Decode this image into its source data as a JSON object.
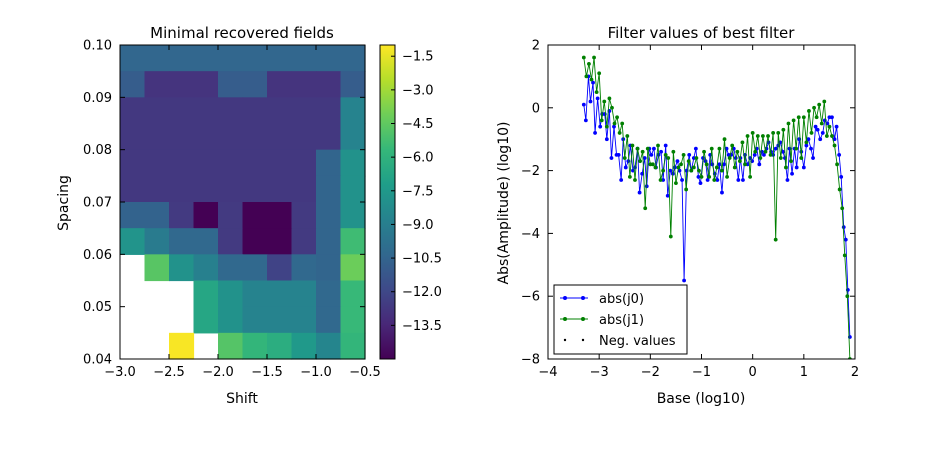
{
  "chart_data": [
    {
      "type": "heatmap",
      "title": "Minimal recovered fields",
      "xlabel": "Shift",
      "ylabel": "Spacing",
      "xlim": [
        -3.0,
        -0.5
      ],
      "ylim": [
        0.04,
        0.1
      ],
      "x_tick_labels": [
        "−3.0",
        "−2.5",
        "−2.0",
        "−1.5",
        "−1.0",
        "−0.5"
      ],
      "y_tick_labels": [
        "0.04",
        "0.05",
        "0.06",
        "0.07",
        "0.08",
        "0.09",
        "0.10"
      ],
      "x_centers": [
        -2.875,
        -2.625,
        -2.375,
        -2.125,
        -1.875,
        -1.625,
        -1.375,
        -1.125,
        -0.875,
        -0.625
      ],
      "y_centers": [
        0.0425,
        0.0475,
        0.0525,
        0.0575,
        0.0625,
        0.0675,
        0.0725,
        0.0775,
        0.0825,
        0.0875,
        0.0925,
        0.0975
      ],
      "values_top_to_bottom": [
        [
          -10.4,
          -10.4,
          -10.4,
          -10.4,
          -10.4,
          -10.4,
          -10.4,
          -10.4,
          -10.4,
          -10.4
        ],
        [
          -10.9,
          -12.9,
          -12.9,
          -12.9,
          -10.9,
          -10.9,
          -12.9,
          -12.9,
          -12.9,
          -10.9
        ],
        [
          -12.7,
          -12.7,
          -12.7,
          -12.7,
          -12.7,
          -12.7,
          -12.7,
          -12.7,
          -12.7,
          -8.7
        ],
        [
          -12.7,
          -12.7,
          -12.7,
          -12.7,
          -12.7,
          -12.7,
          -12.7,
          -12.7,
          -12.7,
          -8.7
        ],
        [
          -12.7,
          -12.7,
          -12.7,
          -12.7,
          -12.7,
          -12.7,
          -12.7,
          -12.7,
          -10.5,
          -7.9
        ],
        [
          -12.7,
          -12.7,
          -12.7,
          -12.7,
          -12.7,
          -12.7,
          -12.7,
          -12.7,
          -10.5,
          -7.9
        ],
        [
          -10.6,
          -10.6,
          -12.6,
          -15.0,
          -12.6,
          -15.0,
          -15.0,
          -12.6,
          -10.5,
          -7.9
        ],
        [
          -7.8,
          -9.2,
          -10.3,
          -10.3,
          -12.6,
          -15.0,
          -15.0,
          -12.6,
          -10.5,
          -5.4
        ],
        [
          null,
          -4.7,
          -7.9,
          -8.9,
          -10.3,
          -10.3,
          -12.2,
          -10.3,
          -10.5,
          -4.2
        ],
        [
          null,
          null,
          null,
          -6.7,
          -7.9,
          -8.7,
          -8.7,
          -8.7,
          -10.3,
          -5.6
        ],
        [
          null,
          null,
          null,
          -6.7,
          -7.9,
          -8.7,
          -8.7,
          -8.7,
          -10.3,
          -5.6
        ],
        [
          null,
          null,
          -1.1,
          null,
          -4.8,
          -5.8,
          -6.3,
          -7.5,
          -8.6,
          -5.8
        ]
      ],
      "colorbar": {
        "colormap": "viridis",
        "range": [
          -15.0,
          -1.0
        ],
        "tick_values": [
          -1.5,
          -3.0,
          -4.5,
          -6.0,
          -7.5,
          -9.0,
          -10.5,
          -12.0,
          -13.5
        ],
        "tick_labels": [
          "−1.5",
          "−3.0",
          "−4.5",
          "−6.0",
          "−7.5",
          "−9.0",
          "−10.5",
          "−12.0",
          "−13.5"
        ]
      }
    },
    {
      "type": "line",
      "title": "Filter values of best filter",
      "xlabel": "Base (log10)",
      "ylabel": "Abs(Amplitude) (log10)",
      "xlim": [
        -4,
        2
      ],
      "ylim": [
        -8,
        2
      ],
      "x_tick_labels": [
        "−4",
        "−3",
        "−2",
        "−1",
        "0",
        "1",
        "2"
      ],
      "y_tick_labels": [
        "−8",
        "−6",
        "−4",
        "−2",
        "0",
        "2"
      ],
      "legend_position": "lower-left",
      "series": [
        {
          "name": "abs(j0)",
          "color": "#0000ff",
          "x": [
            -3.3,
            -3.26,
            -3.21,
            -3.17,
            -3.12,
            -3.08,
            -3.03,
            -2.98,
            -2.94,
            -2.89,
            -2.85,
            -2.8,
            -2.76,
            -2.71,
            -2.66,
            -2.62,
            -2.57,
            -2.53,
            -2.48,
            -2.43,
            -2.39,
            -2.34,
            -2.3,
            -2.25,
            -2.21,
            -2.16,
            -2.11,
            -2.07,
            -2.02,
            -1.98,
            -1.93,
            -1.89,
            -1.84,
            -1.79,
            -1.75,
            -1.7,
            -1.66,
            -1.61,
            -1.56,
            -1.52,
            -1.47,
            -1.43,
            -1.38,
            -1.34,
            -1.29,
            -1.24,
            -1.2,
            -1.15,
            -1.11,
            -1.06,
            -1.02,
            -0.97,
            -0.92,
            -0.88,
            -0.83,
            -0.79,
            -0.74,
            -0.69,
            -0.65,
            -0.6,
            -0.56,
            -0.51,
            -0.47,
            -0.42,
            -0.37,
            -0.33,
            -0.28,
            -0.24,
            -0.19,
            -0.15,
            -0.1,
            -0.05,
            -0.01,
            0.04,
            0.08,
            0.13,
            0.18,
            0.22,
            0.27,
            0.31,
            0.36,
            0.4,
            0.45,
            0.5,
            0.54,
            0.59,
            0.63,
            0.68,
            0.72,
            0.77,
            0.82,
            0.86,
            0.91,
            0.95,
            1.0,
            1.05,
            1.09,
            1.14,
            1.18,
            1.23,
            1.27,
            1.32,
            1.37,
            1.41,
            1.46,
            1.5,
            1.55,
            1.6,
            1.64,
            1.69,
            1.73,
            1.78,
            1.82,
            1.86,
            1.9
          ],
          "y": [
            0.1,
            -0.4,
            1.0,
            0.2,
            0.8,
            -0.8,
            0.3,
            -0.6,
            -0.2,
            -0.2,
            -1.0,
            -0.1,
            -1.6,
            -0.6,
            -1.5,
            -1.5,
            -2.3,
            -1.0,
            -1.9,
            -1.7,
            -1.2,
            -2.0,
            -1.9,
            -1.3,
            -2.7,
            -2.1,
            -1.6,
            -2.5,
            -1.3,
            -1.5,
            -1.3,
            -1.9,
            -1.5,
            -1.4,
            -2.3,
            -1.2,
            -2.8,
            -2.0,
            -2.1,
            -1.9,
            -1.7,
            -2.0,
            -2.3,
            -5.5,
            -2.0,
            -1.5,
            -2.0,
            -1.6,
            -1.3,
            -2.2,
            -2.4,
            -1.6,
            -1.7,
            -2.3,
            -1.5,
            -1.8,
            -2.1,
            -2.3,
            -1.8,
            -2.7,
            -1.8,
            -1.3,
            -1.5,
            -1.5,
            -1.3,
            -1.6,
            -2.3,
            -1.6,
            -2.3,
            -1.5,
            -1.8,
            -1.6,
            -1.7,
            -1.5,
            -1.3,
            -1.8,
            -1.4,
            -1.5,
            -1.3,
            -1.1,
            -1.4,
            -1.5,
            -1.3,
            -1.2,
            -1.1,
            -1.4,
            -1.6,
            -2.3,
            -1.3,
            -2.1,
            -1.3,
            -1.9,
            -1.0,
            -1.4,
            -1.9,
            -1.2,
            -1.0,
            -1.3,
            -1.6,
            -0.6,
            -0.7,
            -1.0,
            -0.8,
            -0.4,
            -0.5,
            -0.3,
            -0.3,
            -1.0,
            -0.6,
            -1.5,
            -2.2,
            -3.8,
            -4.2,
            -5.8,
            -7.3
          ]
        },
        {
          "name": "abs(j1)",
          "color": "#008000",
          "x": [
            -3.3,
            -3.25,
            -3.2,
            -3.15,
            -3.1,
            -3.05,
            -3.0,
            -2.95,
            -2.9,
            -2.85,
            -2.8,
            -2.75,
            -2.7,
            -2.65,
            -2.6,
            -2.55,
            -2.5,
            -2.45,
            -2.4,
            -2.35,
            -2.3,
            -2.25,
            -2.2,
            -2.15,
            -2.1,
            -2.05,
            -2.0,
            -1.95,
            -1.9,
            -1.85,
            -1.8,
            -1.75,
            -1.7,
            -1.65,
            -1.6,
            -1.55,
            -1.5,
            -1.45,
            -1.4,
            -1.35,
            -1.3,
            -1.25,
            -1.2,
            -1.15,
            -1.1,
            -1.05,
            -1.0,
            -0.95,
            -0.9,
            -0.85,
            -0.8,
            -0.75,
            -0.7,
            -0.65,
            -0.6,
            -0.55,
            -0.5,
            -0.45,
            -0.4,
            -0.35,
            -0.3,
            -0.25,
            -0.2,
            -0.15,
            -0.1,
            -0.05,
            0.0,
            0.05,
            0.1,
            0.15,
            0.2,
            0.25,
            0.3,
            0.35,
            0.4,
            0.45,
            0.5,
            0.55,
            0.6,
            0.65,
            0.7,
            0.75,
            0.8,
            0.85,
            0.9,
            0.95,
            1.0,
            1.05,
            1.1,
            1.15,
            1.2,
            1.25,
            1.3,
            1.35,
            1.4,
            1.45,
            1.5,
            1.55,
            1.6,
            1.65,
            1.7,
            1.75,
            1.8,
            1.85,
            1.9
          ],
          "y": [
            1.6,
            1.0,
            1.4,
            0.9,
            1.6,
            0.5,
            1.1,
            -0.4,
            0.2,
            -0.6,
            0.3,
            0.0,
            -0.5,
            -0.3,
            -0.8,
            -0.5,
            -1.6,
            -0.9,
            -2.2,
            -1.2,
            -2.3,
            -1.3,
            -1.7,
            -1.4,
            -3.2,
            -1.3,
            -1.8,
            -1.8,
            -1.9,
            -1.2,
            -2.3,
            -2.0,
            -1.5,
            -1.6,
            -4.1,
            -1.4,
            -2.4,
            -1.9,
            -1.8,
            -1.5,
            -2.6,
            -1.7,
            -2.0,
            -1.9,
            -1.6,
            -2.0,
            -2.2,
            -1.4,
            -1.8,
            -2.2,
            -1.3,
            -2.3,
            -1.9,
            -1.3,
            -2.0,
            -1.0,
            -2.2,
            -1.6,
            -1.2,
            -1.9,
            -1.4,
            -1.7,
            -1.1,
            -1.8,
            -0.9,
            -2.2,
            -0.8,
            -1.4,
            -0.9,
            -1.6,
            -0.9,
            -1.4,
            -0.9,
            -1.5,
            -0.8,
            -4.2,
            -0.8,
            -1.6,
            -0.7,
            -1.9,
            -0.5,
            -1.7,
            -0.4,
            -1.3,
            -0.3,
            -1.6,
            -0.3,
            -1.1,
            -0.1,
            -0.8,
            0.0,
            -0.3,
            0.1,
            -0.5,
            0.2,
            -0.9,
            -0.6,
            -0.9,
            -1.2,
            -1.8,
            -2.6,
            -3.2,
            -4.7,
            -6.0,
            -8.0
          ]
        }
      ],
      "neg_values_legend": "Neg. values"
    }
  ]
}
